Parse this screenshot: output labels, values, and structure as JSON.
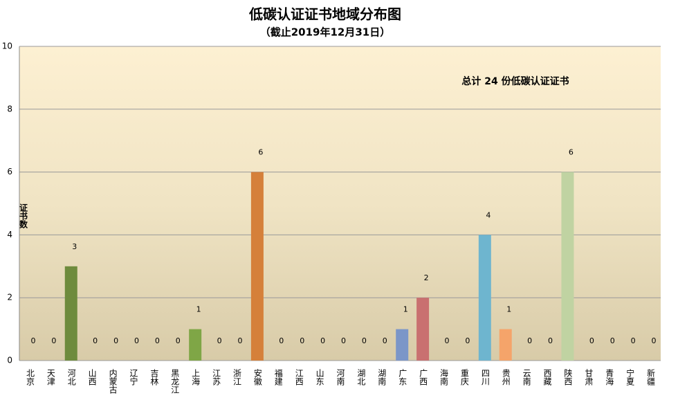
{
  "chart_data": {
    "type": "bar",
    "title": "低碳认证证书地域分布图",
    "subtitle": "（截止2019年12月31日）",
    "annotation": "总计 24 份低碳认证证书",
    "y_label": "证书数",
    "categories": [
      "北京",
      "天津",
      "河北",
      "山西",
      "内蒙古",
      "辽宁",
      "吉林",
      "黑龙江",
      "上海",
      "江苏",
      "浙江",
      "安徽",
      "福建",
      "江西",
      "山东",
      "河南",
      "湖北",
      "湖南",
      "广东",
      "广西",
      "海南",
      "重庆",
      "四川",
      "贵州",
      "云南",
      "西藏",
      "陕西",
      "甘肃",
      "青海",
      "宁夏",
      "新疆"
    ],
    "values": [
      0,
      0,
      3,
      0,
      0,
      0,
      0,
      0,
      1,
      0,
      0,
      6,
      0,
      0,
      0,
      0,
      0,
      0,
      1,
      2,
      0,
      0,
      4,
      1,
      0,
      0,
      6,
      0,
      0,
      0,
      0
    ],
    "colors": [
      "#4f81bd",
      "#4f81bd",
      "#6e8b3d",
      "#4f81bd",
      "#4f81bd",
      "#4f81bd",
      "#4f81bd",
      "#4f81bd",
      "#7fa646",
      "#4f81bd",
      "#4f81bd",
      "#d5803a",
      "#4f81bd",
      "#4f81bd",
      "#4f81bd",
      "#4f81bd",
      "#4f81bd",
      "#4f81bd",
      "#7b96c8",
      "#c97070",
      "#4f81bd",
      "#4f81bd",
      "#6eb5cf",
      "#f5a46a",
      "#4f81bd",
      "#4f81bd",
      "#c0d3a2",
      "#4f81bd",
      "#4f81bd",
      "#4f81bd",
      "#4f81bd"
    ],
    "ylim": [
      0,
      10
    ],
    "yticks": [
      0,
      2,
      4,
      6,
      8,
      10
    ],
    "grid": true
  }
}
